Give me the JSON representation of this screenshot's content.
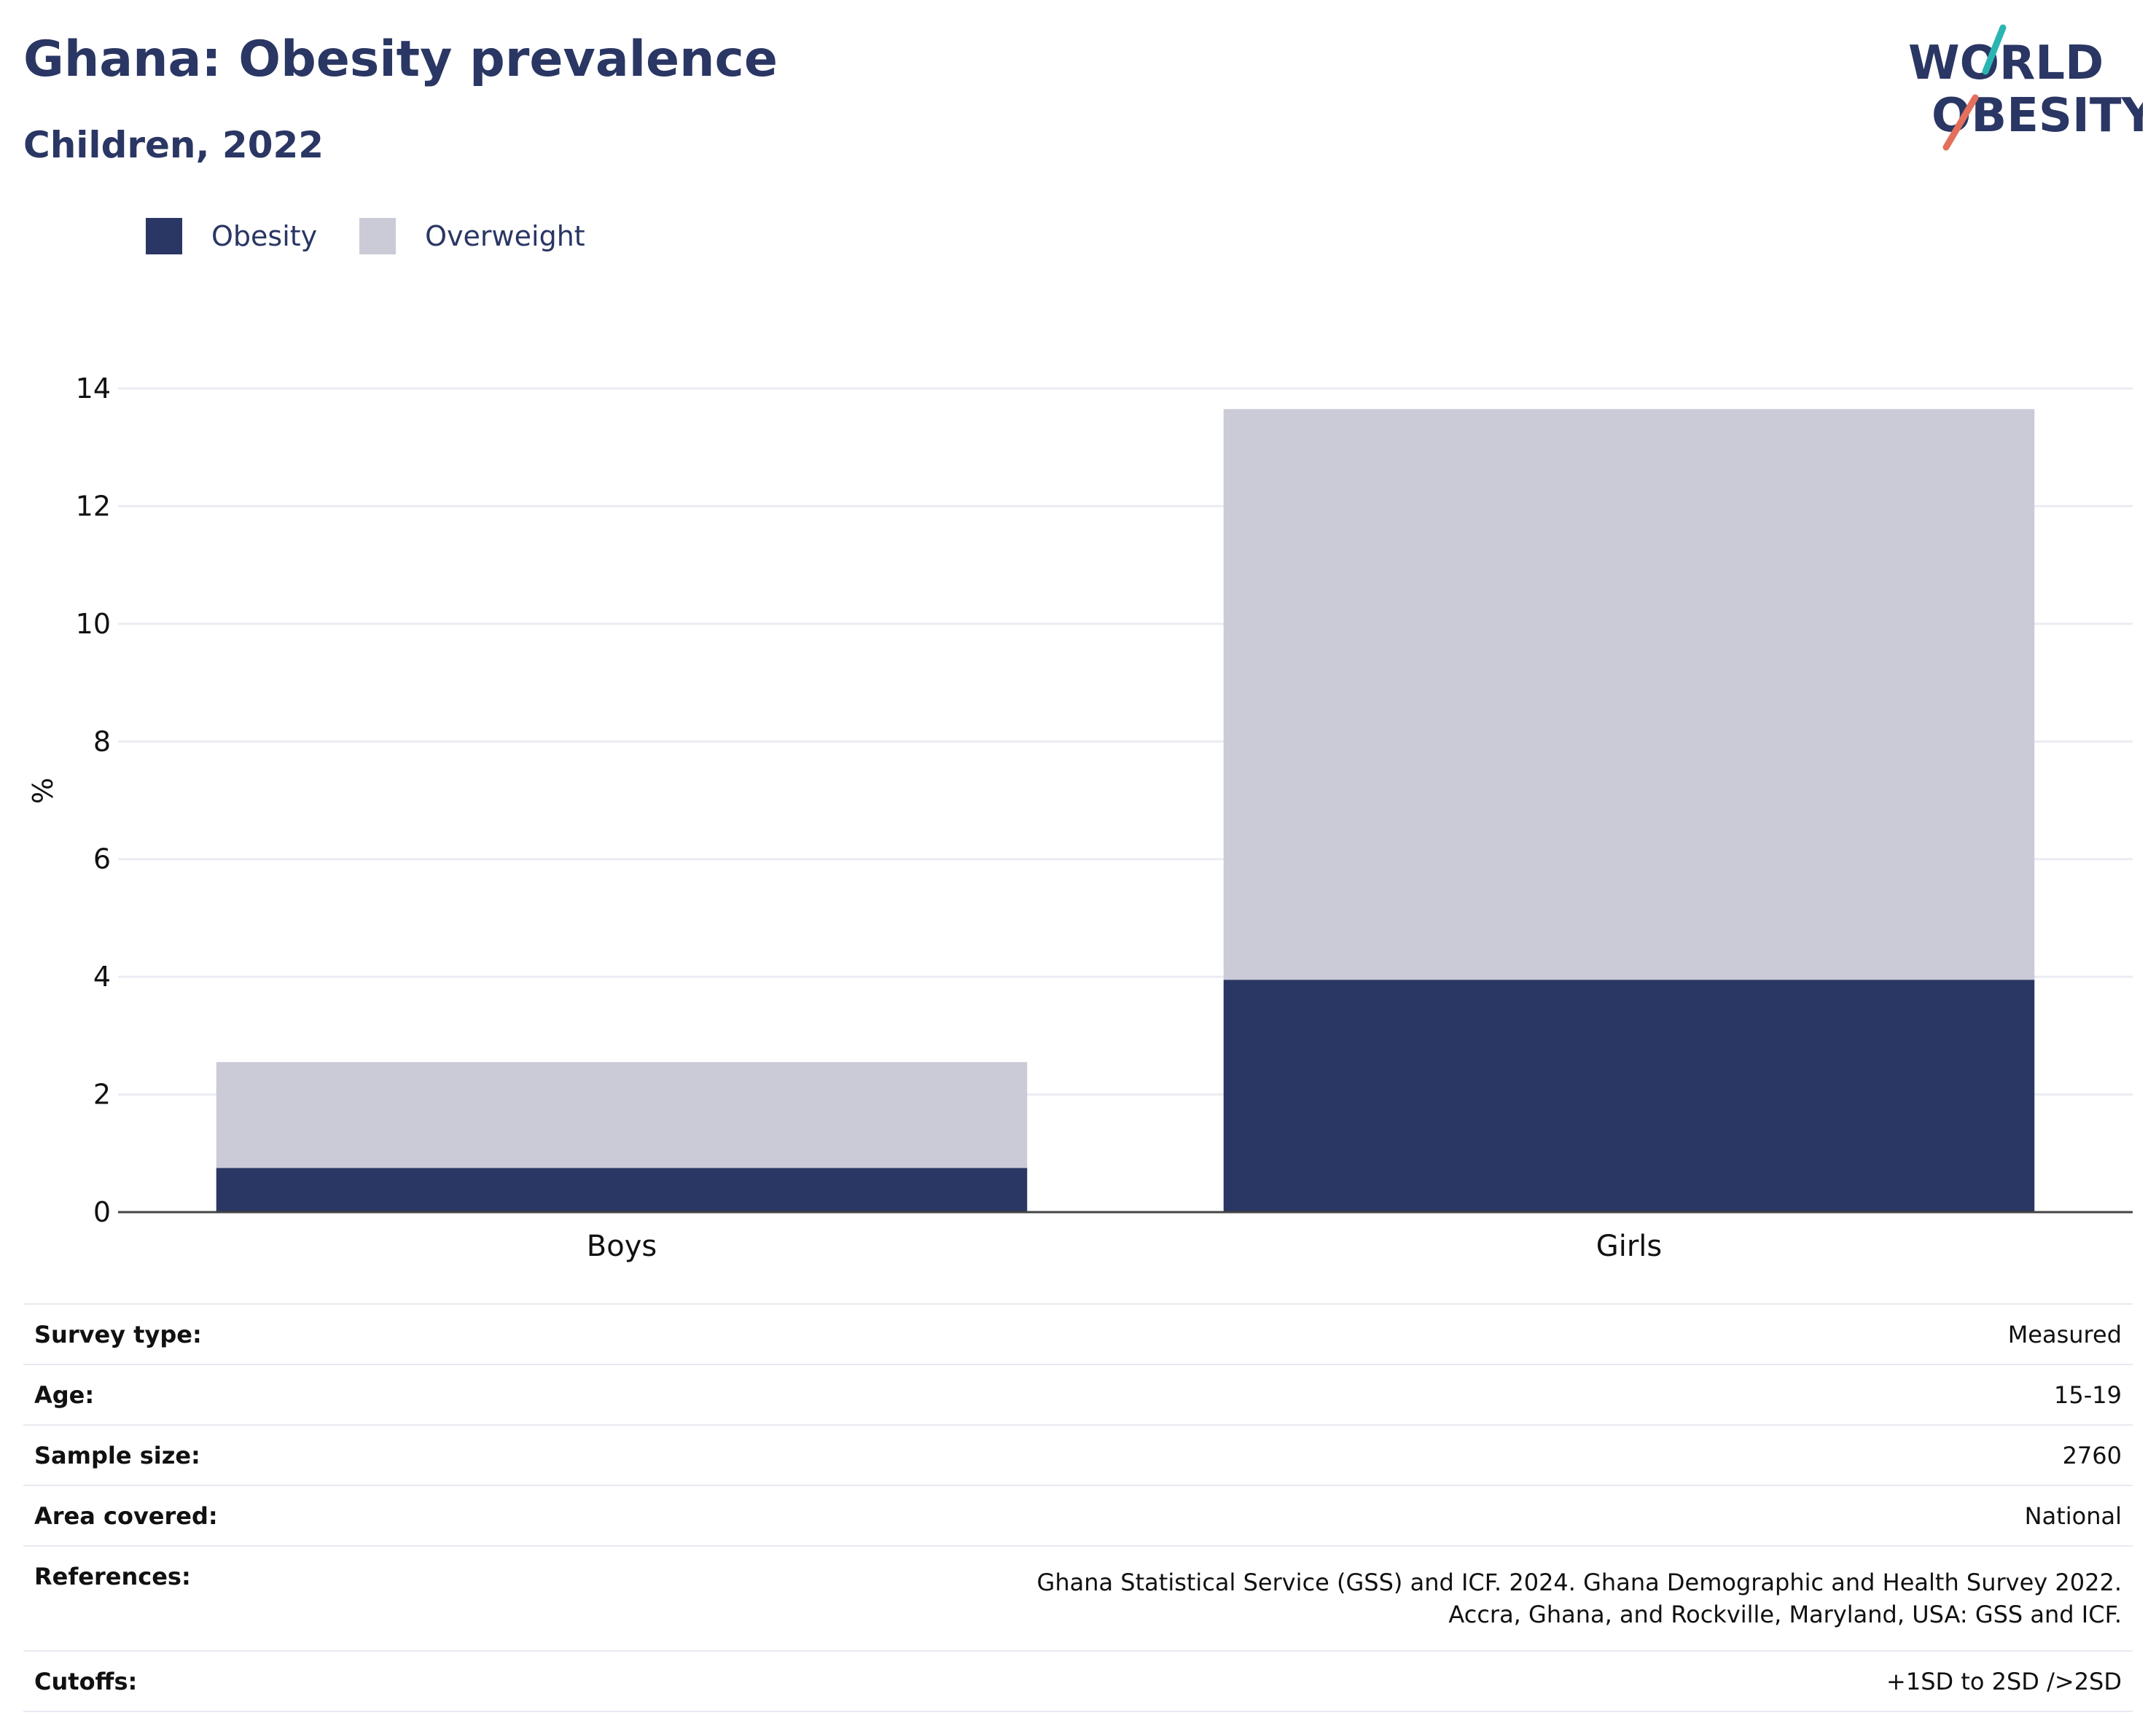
{
  "title": "Ghana: Obesity prevalence",
  "subtitle": "Children, 2022",
  "logo": {
    "line1": "WORLD",
    "line2": "OBESITY"
  },
  "colors": {
    "obesity": "#2a3663",
    "overweight": "#cacbd7",
    "accent_teal": "#2bb5b2",
    "accent_coral": "#e4705b",
    "text": "#2a3663"
  },
  "chart_data": {
    "type": "bar",
    "stacked": true,
    "categories": [
      "Boys",
      "Girls"
    ],
    "series": [
      {
        "name": "Obesity",
        "values": [
          0.75,
          3.95
        ]
      },
      {
        "name": "Overweight",
        "values": [
          1.8,
          9.7
        ]
      }
    ],
    "ylabel": "%",
    "ylim": [
      0,
      14
    ],
    "yticks": [
      0,
      2,
      4,
      6,
      8,
      10,
      12,
      14
    ],
    "grid": true,
    "legend": "top-left"
  },
  "info": [
    {
      "label": "Survey type:",
      "value": "Measured"
    },
    {
      "label": "Age:",
      "value": "15-19"
    },
    {
      "label": "Sample size:",
      "value": "2760"
    },
    {
      "label": "Area covered:",
      "value": "National"
    },
    {
      "label": "References:",
      "value": "Ghana Statistical Service (GSS) and ICF. 2024. Ghana Demographic and Health Survey 2022. Accra, Ghana, and Rockville, Maryland, USA: GSS and ICF."
    },
    {
      "label": "Cutoffs:",
      "value": "+1SD to 2SD />2SD"
    }
  ]
}
